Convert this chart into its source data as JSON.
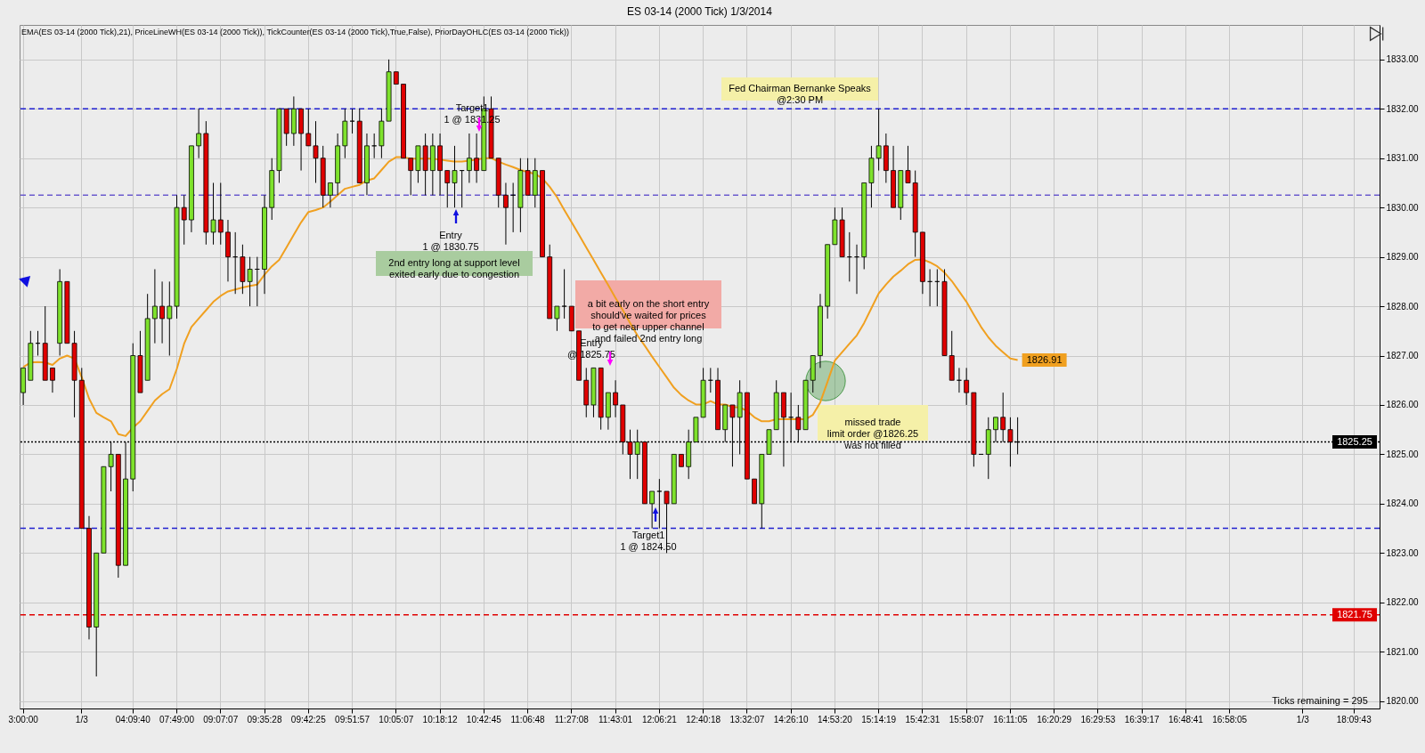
{
  "chart_data": {
    "type": "candlestick",
    "title": "ES 03-14 (2000 Tick)  1/3/2014",
    "subtitle": "EMA(ES 03-14 (2000 Tick),21), PriceLineWH(ES 03-14 (2000 Tick)), TickCounter(ES 03-14 (2000 Tick),True,False), PriorDayOHLC(ES 03-14 (2000 Tick))",
    "categories": [
      "3:00:00",
      null,
      null,
      null,
      null,
      null,
      null,
      null,
      "1/3",
      null,
      null,
      null,
      null,
      null,
      null,
      "04:09:40",
      null,
      null,
      null,
      null,
      null,
      "07:49:00",
      null,
      null,
      null,
      null,
      null,
      "09:07:07",
      null,
      null,
      null,
      null,
      null,
      "09:35:28",
      null,
      null,
      null,
      null,
      null,
      "09:42:25",
      null,
      null,
      null,
      null,
      null,
      "09:51:57",
      null,
      null,
      null,
      null,
      null,
      "10:05:07",
      null,
      null,
      null,
      null,
      null,
      "10:18:12",
      null,
      null,
      null,
      null,
      null,
      "10:42:45",
      null,
      null,
      null,
      null,
      null,
      "11:06:48",
      null,
      null,
      null,
      null,
      null,
      "11:27:08",
      null,
      null,
      null,
      null,
      null,
      "11:43:01",
      null,
      null,
      null,
      null,
      null,
      "12:06:21",
      null,
      null,
      null,
      null,
      null,
      "12:40:18",
      null,
      null,
      null,
      null,
      null,
      "13:32:07",
      null,
      null,
      null,
      null,
      null,
      "14:26:10",
      null,
      null,
      null,
      null,
      null,
      "14:53:20",
      null,
      null,
      null,
      null,
      null,
      "15:14:19",
      null,
      null,
      null,
      null,
      null,
      "15:42:31",
      null,
      null,
      null,
      null,
      null,
      "15:58:07",
      null,
      null,
      null,
      null,
      null,
      "16:11:05",
      null,
      null,
      null,
      null,
      null,
      "16:20:29",
      null,
      null,
      null,
      null,
      null,
      "16:29:53",
      null,
      null,
      null,
      null,
      null,
      "16:39:17",
      null,
      null,
      null,
      null,
      null,
      "16:48:41",
      null,
      null,
      null,
      null,
      null,
      "16:58:05",
      null,
      null,
      null,
      null,
      null,
      null,
      null,
      null,
      null,
      "1/3",
      null,
      null,
      null,
      null,
      null,
      null,
      "18:09:43",
      null,
      null,
      null
    ],
    "ohlc": [
      [
        1826.25,
        1826.75,
        1826,
        1826.75
      ],
      [
        1826.5,
        1827.5,
        1826.5,
        1827.25
      ],
      [
        1827.25,
        1827.5,
        1827,
        1827.25
      ],
      [
        1827.25,
        1828,
        1826.5,
        1826.5
      ],
      [
        1826.75,
        1826.75,
        1826.25,
        1826.5
      ],
      [
        1827.25,
        1828.75,
        1827,
        1828.5
      ],
      [
        1828.5,
        1828.5,
        1827.25,
        1827.25
      ],
      [
        1827.25,
        1827.5,
        1825.75,
        1826.5
      ],
      [
        1826.5,
        1826.75,
        1823.5,
        1823.5
      ],
      [
        1823.5,
        1823.75,
        1821.25,
        1821.5
      ],
      [
        1821.5,
        1823,
        1820.5,
        1823
      ],
      [
        1823,
        1824.75,
        1823,
        1824.75
      ],
      [
        1824.75,
        1825.25,
        1824.25,
        1825
      ],
      [
        1825,
        1825,
        1822.5,
        1822.75
      ],
      [
        1822.75,
        1825.25,
        1822.75,
        1824.5
      ],
      [
        1824.5,
        1827.25,
        1824.25,
        1827
      ],
      [
        1827,
        1827.5,
        1826.25,
        1826.25
      ],
      [
        1826.5,
        1828.25,
        1826.5,
        1827.75
      ],
      [
        1827.75,
        1828.75,
        1827.25,
        1828
      ],
      [
        1828,
        1828.5,
        1827.25,
        1827.75
      ],
      [
        1827.75,
        1828.5,
        1827,
        1828
      ],
      [
        1828,
        1830.25,
        1827.75,
        1830
      ],
      [
        1830,
        1830.25,
        1829.25,
        1829.75
      ],
      [
        1829.75,
        1831.25,
        1829.5,
        1831.25
      ],
      [
        1831.25,
        1832,
        1831,
        1831.5
      ],
      [
        1831.5,
        1831.75,
        1829.25,
        1829.5
      ],
      [
        1829.5,
        1830.5,
        1829.25,
        1829.75
      ],
      [
        1829.75,
        1830.5,
        1829.25,
        1829.5
      ],
      [
        1829.5,
        1829.75,
        1828.5,
        1829
      ],
      [
        1829,
        1829.5,
        1828.25,
        1829
      ],
      [
        1829,
        1829.25,
        1828.25,
        1828.5
      ],
      [
        1828.5,
        1829,
        1828,
        1828.75
      ],
      [
        1828.75,
        1829,
        1828,
        1828.75
      ],
      [
        1828.75,
        1830.25,
        1828.25,
        1830
      ],
      [
        1830,
        1831,
        1829.75,
        1830.75
      ],
      [
        1830.75,
        1832,
        1830.5,
        1832
      ],
      [
        1832,
        1832,
        1831.25,
        1831.5
      ],
      [
        1831.5,
        1832.25,
        1831.25,
        1832
      ],
      [
        1832,
        1832,
        1830.75,
        1831.5
      ],
      [
        1831.5,
        1832,
        1831.25,
        1831.25
      ],
      [
        1831.25,
        1831.75,
        1830.5,
        1831
      ],
      [
        1831,
        1831.25,
        1830,
        1830.25
      ],
      [
        1830.25,
        1830.5,
        1830,
        1830.5
      ],
      [
        1830.5,
        1831.5,
        1830.25,
        1831.25
      ],
      [
        1831.25,
        1832,
        1831,
        1831.75
      ],
      [
        1831.75,
        1832,
        1831.5,
        1831.75
      ],
      [
        1831.75,
        1832,
        1830.5,
        1830.5
      ],
      [
        1830.5,
        1831.5,
        1830.25,
        1831.25
      ],
      [
        1831.25,
        1831.5,
        1831,
        1831.25
      ],
      [
        1831.25,
        1832,
        1831,
        1831.75
      ],
      [
        1831.75,
        1833,
        1831.75,
        1832.75
      ],
      [
        1832.75,
        1832.75,
        1832.5,
        1832.5
      ],
      [
        1832.5,
        1832.5,
        1831,
        1831
      ],
      [
        1831,
        1831,
        1830.25,
        1830.75
      ],
      [
        1830.75,
        1831.25,
        1830.5,
        1831.25
      ],
      [
        1831.25,
        1831.5,
        1830.25,
        1830.75
      ],
      [
        1830.75,
        1831.5,
        1830.25,
        1831.25
      ],
      [
        1831.25,
        1831.5,
        1830.25,
        1830.75
      ],
      [
        1830.75,
        1830.75,
        1830,
        1830.5
      ],
      [
        1830.5,
        1831.25,
        1830,
        1830.75
      ],
      [
        1830.75,
        1830.75,
        1830,
        1830.75
      ],
      [
        1830.75,
        1831.5,
        1830.5,
        1831
      ],
      [
        1831,
        1831.5,
        1830.5,
        1830.75
      ],
      [
        1830.75,
        1832.25,
        1830.75,
        1832
      ],
      [
        1832,
        1832.25,
        1831,
        1831
      ],
      [
        1831,
        1831,
        1830,
        1830.25
      ],
      [
        1830.25,
        1830.5,
        1829.25,
        1830
      ],
      [
        1830.25,
        1830.5,
        1829.5,
        1830.25
      ],
      [
        1830,
        1831,
        1829.5,
        1830.75
      ],
      [
        1830.75,
        1831,
        1830.25,
        1830.25
      ],
      [
        1830.25,
        1831,
        1830,
        1830.75
      ],
      [
        1830.75,
        1830.75,
        1829,
        1829
      ],
      [
        1829,
        1829.25,
        1827.75,
        1827.75
      ],
      [
        1827.75,
        1828,
        1827.5,
        1828
      ],
      [
        1828,
        1828.75,
        1827.75,
        1828
      ],
      [
        1828,
        1828,
        1827.5,
        1827.5
      ],
      [
        1827.5,
        1827.5,
        1826.5,
        1826.5
      ],
      [
        1826.5,
        1826.75,
        1825.75,
        1826
      ],
      [
        1826,
        1826.75,
        1825.75,
        1826.75
      ],
      [
        1826.75,
        1826.75,
        1825.5,
        1825.75
      ],
      [
        1825.75,
        1826.25,
        1825.5,
        1826.25
      ],
      [
        1826.25,
        1826.5,
        1825.75,
        1826
      ],
      [
        1826,
        1826,
        1825,
        1825.25
      ],
      [
        1825.25,
        1825.5,
        1824.5,
        1825
      ],
      [
        1825,
        1825.5,
        1824.5,
        1825.25
      ],
      [
        1825.25,
        1825.25,
        1824,
        1824
      ],
      [
        1824,
        1824.25,
        1823.5,
        1824.25
      ],
      [
        1824.25,
        1824.5,
        1823.5,
        1824.25
      ],
      [
        1824.25,
        1824.25,
        1823,
        1824
      ],
      [
        1824,
        1825,
        1824,
        1825
      ],
      [
        1825,
        1825,
        1824.75,
        1824.75
      ],
      [
        1824.75,
        1825.5,
        1824.5,
        1825.25
      ],
      [
        1825.25,
        1825.75,
        1825.25,
        1825.75
      ],
      [
        1825.75,
        1826.75,
        1825.75,
        1826.5
      ],
      [
        1826.5,
        1826.75,
        1826.25,
        1826.5
      ],
      [
        1826.5,
        1826.75,
        1825.5,
        1825.5
      ],
      [
        1825.5,
        1826,
        1825.25,
        1826
      ],
      [
        1826,
        1826,
        1824.75,
        1825.75
      ],
      [
        1825.75,
        1826.5,
        1825,
        1826.25
      ],
      [
        1826.25,
        1826.25,
        1824.5,
        1824.5
      ],
      [
        1824.5,
        1824.5,
        1824,
        1824
      ],
      [
        1824,
        1825,
        1823.5,
        1825
      ],
      [
        1825,
        1825.5,
        1825,
        1825.5
      ],
      [
        1825.5,
        1826.5,
        1825.5,
        1826.25
      ],
      [
        1826.25,
        1826.25,
        1824.75,
        1825.75
      ],
      [
        1825.75,
        1826.25,
        1825.25,
        1825.75
      ],
      [
        1825.75,
        1826,
        1825.25,
        1825.5
      ],
      [
        1825.5,
        1826.5,
        1825.5,
        1826.5
      ],
      [
        1826.5,
        1827,
        1826.25,
        1827
      ],
      [
        1827,
        1828.25,
        1826.75,
        1828
      ],
      [
        1828,
        1829.25,
        1827.75,
        1829.25
      ],
      [
        1829.25,
        1830,
        1829.25,
        1829.75
      ],
      [
        1829.75,
        1830,
        1829,
        1829
      ],
      [
        1829,
        1829.5,
        1828.5,
        1829
      ],
      [
        1829,
        1829.25,
        1828.25,
        1829
      ],
      [
        1829,
        1830.5,
        1828.75,
        1830.5
      ],
      [
        1830.5,
        1831.25,
        1830,
        1831
      ],
      [
        1831,
        1832,
        1830.75,
        1831.25
      ],
      [
        1831.25,
        1831.5,
        1830.5,
        1830.75
      ],
      [
        1830.75,
        1831.25,
        1830,
        1830
      ],
      [
        1830,
        1830.75,
        1829.75,
        1830.75
      ],
      [
        1830.75,
        1831.25,
        1830.5,
        1830.5
      ],
      [
        1830.5,
        1830.75,
        1829,
        1829.5
      ],
      [
        1829.5,
        1829.5,
        1828.25,
        1828.5
      ],
      [
        1828.5,
        1828.75,
        1828,
        1828.5
      ],
      [
        1828.5,
        1828.75,
        1828,
        1828.5
      ],
      [
        1828.5,
        1828.75,
        1827,
        1827
      ],
      [
        1827,
        1827.5,
        1826.5,
        1826.5
      ],
      [
        1826.5,
        1826.75,
        1826.25,
        1826.5
      ],
      [
        1826.5,
        1826.75,
        1826,
        1826.25
      ],
      [
        1826.25,
        1826.25,
        1824.75,
        1825
      ],
      [
        1825,
        1825,
        1825,
        1825
      ],
      [
        1825,
        1825.75,
        1824.5,
        1825.5
      ],
      [
        1825.5,
        1825.75,
        1825.25,
        1825.75
      ],
      [
        1825.75,
        1826.25,
        1825.25,
        1825.5
      ],
      [
        1825.5,
        1825.75,
        1824.75,
        1825.25
      ],
      [
        1825.25,
        1825.75,
        1825,
        1825.25
      ],
      null,
      null,
      null,
      null,
      null,
      null,
      null,
      null,
      null,
      null,
      null,
      null,
      null,
      null,
      null,
      null,
      null,
      null,
      null,
      null,
      null,
      null,
      null,
      null,
      null,
      null,
      null,
      null,
      null,
      null,
      null,
      null,
      null,
      null,
      null,
      null,
      null,
      null,
      null,
      null,
      null,
      null,
      null,
      null,
      null,
      null,
      null,
      null,
      null
    ],
    "series": [
      {
        "type": "line",
        "color": "#f0a020",
        "value_labels": [
          null,
          null,
          null,
          null,
          null,
          null,
          null,
          null,
          null,
          null,
          null,
          null,
          null,
          null,
          null,
          null,
          null,
          null,
          null,
          null,
          null,
          null,
          null,
          null,
          null,
          null,
          null,
          null,
          null,
          null,
          null,
          null,
          null,
          null,
          null,
          null,
          null,
          null,
          null,
          null,
          null,
          null,
          null,
          null,
          null,
          null,
          null,
          null,
          null,
          null,
          null,
          null,
          null,
          null,
          null,
          null,
          null,
          null,
          null,
          null,
          null,
          null,
          null,
          null,
          null,
          null,
          null,
          null,
          null,
          null,
          null,
          null,
          null,
          null,
          null,
          null,
          null,
          null,
          null,
          null,
          null,
          null,
          null,
          null,
          null,
          null,
          null,
          null,
          null,
          null,
          null,
          null,
          null,
          null,
          null,
          null,
          null,
          null,
          null,
          null,
          null,
          null,
          null,
          null,
          null,
          null,
          null,
          null,
          null,
          null,
          null,
          null,
          null,
          null,
          null,
          null,
          null,
          null,
          null,
          null,
          null,
          null,
          null,
          null,
          null,
          null,
          null,
          null,
          null,
          null,
          null,
          null,
          null,
          null,
          null,
          null,
          "1826.91",
          null,
          null,
          null,
          null,
          null,
          null,
          null,
          null,
          null,
          null,
          null,
          null,
          null,
          null,
          null,
          null,
          null,
          null,
          null,
          null,
          null,
          null,
          null,
          null,
          null,
          null,
          null,
          null,
          null,
          null,
          null,
          null,
          null,
          null,
          null,
          null,
          null,
          null,
          null,
          null,
          null,
          null,
          null,
          null,
          null,
          null,
          null,
          null,
          null
        ],
        "values": [
          1826.77,
          1826.86,
          1826.87,
          1826.86,
          1826.81,
          1826.94,
          1827.0,
          1826.94,
          1826.56,
          1826.13,
          1825.84,
          1825.75,
          1825.67,
          1825.41,
          1825.37,
          1825.54,
          1825.67,
          1825.88,
          1826.09,
          1826.22,
          1826.32,
          1826.73,
          1827.24,
          1827.58,
          1827.75,
          1827.92,
          1828.09,
          1828.21,
          1828.3,
          1828.34,
          1828.38,
          1828.41,
          1828.44,
          1828.64,
          1828.81,
          1828.94,
          1829.19,
          1829.45,
          1829.7,
          1829.91,
          1829.95,
          1830.0,
          1830.12,
          1830.25,
          1830.38,
          1830.42,
          1830.46,
          1830.55,
          1830.59,
          1830.76,
          1830.93,
          1831.02,
          1831.02,
          1830.99,
          1830.99,
          1830.99,
          1830.99,
          1830.97,
          1830.95,
          1830.93,
          1830.93,
          1830.95,
          1830.97,
          1831.0,
          1831.0,
          1830.93,
          1830.87,
          1830.82,
          1830.76,
          1830.72,
          1830.68,
          1830.59,
          1830.42,
          1830.21,
          1829.95,
          1829.7,
          1829.45,
          1829.19,
          1828.94,
          1828.68,
          1828.43,
          1828.17,
          1827.92,
          1827.66,
          1827.41,
          1827.2,
          1826.98,
          1826.77,
          1826.56,
          1826.35,
          1826.2,
          1826.09,
          1826.01,
          1826.01,
          1826.08,
          1826.01,
          1826.01,
          1825.96,
          1825.95,
          1825.88,
          1825.75,
          1825.67,
          1825.67,
          1825.71,
          1825.71,
          1825.71,
          1825.71,
          1825.71,
          1825.8,
          1826.05,
          1826.47,
          1826.9,
          1827.07,
          1827.24,
          1827.41,
          1827.66,
          1827.96,
          1828.26,
          1828.44,
          1828.6,
          1828.72,
          1828.85,
          1828.94,
          1828.95,
          1828.89,
          1828.81,
          1828.68,
          1828.51,
          1828.3,
          1828.09,
          1827.83,
          1827.58,
          1827.37,
          1827.2,
          1827.07,
          1826.94,
          1826.91,
          null,
          null,
          null,
          null,
          null,
          null,
          null,
          null,
          null,
          null,
          null,
          null,
          null,
          null,
          null,
          null,
          null,
          null,
          null,
          null,
          null,
          null,
          null,
          null,
          null,
          null,
          null,
          null,
          null,
          null,
          null,
          null,
          null,
          null,
          null,
          null,
          null,
          null,
          null,
          null,
          null,
          null,
          null,
          null,
          null,
          null,
          null,
          null,
          null
        ]
      }
    ],
    "ylim": [
      1819.85,
      1833.7
    ],
    "yticks": [
      {
        "value": 1820,
        "label": "1820.00"
      },
      {
        "value": 1821,
        "label": "1821.00"
      },
      {
        "value": 1822,
        "label": "1822.00"
      },
      {
        "value": 1823,
        "label": "1823.00"
      },
      {
        "value": 1824,
        "label": "1824.00"
      },
      {
        "value": 1825,
        "label": "1825.00"
      },
      {
        "value": 1826,
        "label": "1826.00"
      },
      {
        "value": 1827,
        "label": "1827.00"
      },
      {
        "value": 1828,
        "label": "1828.00"
      },
      {
        "value": 1829,
        "label": "1829.00"
      },
      {
        "value": 1830,
        "label": "1830.00"
      },
      {
        "value": 1831,
        "label": "1831.00"
      },
      {
        "value": 1832,
        "label": "1832.00"
      },
      {
        "value": 1833,
        "label": "1833.00"
      }
    ],
    "grid": true,
    "ref_lines": [
      {
        "axis": "y",
        "value": 1832,
        "color": "#1f1fd0",
        "line_style": "dashed"
      },
      {
        "axis": "y",
        "value": 1823.5,
        "color": "#1f1fd0",
        "line_style": "dashed"
      },
      {
        "axis": "y",
        "value": 1830.25,
        "color": "#6a5acd",
        "line_style": "dashed"
      },
      {
        "axis": "y",
        "value": 1821.75,
        "label": "1821.75",
        "color": "#e00000",
        "line_style": "dashed"
      },
      {
        "axis": "y",
        "value": 1825.25,
        "label": "1825.25",
        "color": "#000000",
        "line_style": "dotted"
      }
    ],
    "annotations": [
      "Target1\n1 @ 1831.25",
      "Entry\n1 @ 1830.75",
      "2nd entry long at support level\nexited early due to congestion",
      "a bit early on the short entry\nshould've waited for prices\nto get near upper channel\nand failed 2nd entry long",
      "Entry\n@ 1825.75",
      "Target1\n1 @ 1824.50",
      "Fed Chairman Bernanke Speaks\n@2:30 PM",
      "missed trade\nlimit order @1826.25\nwas not filled",
      "Ticks remaining = 295"
    ]
  }
}
